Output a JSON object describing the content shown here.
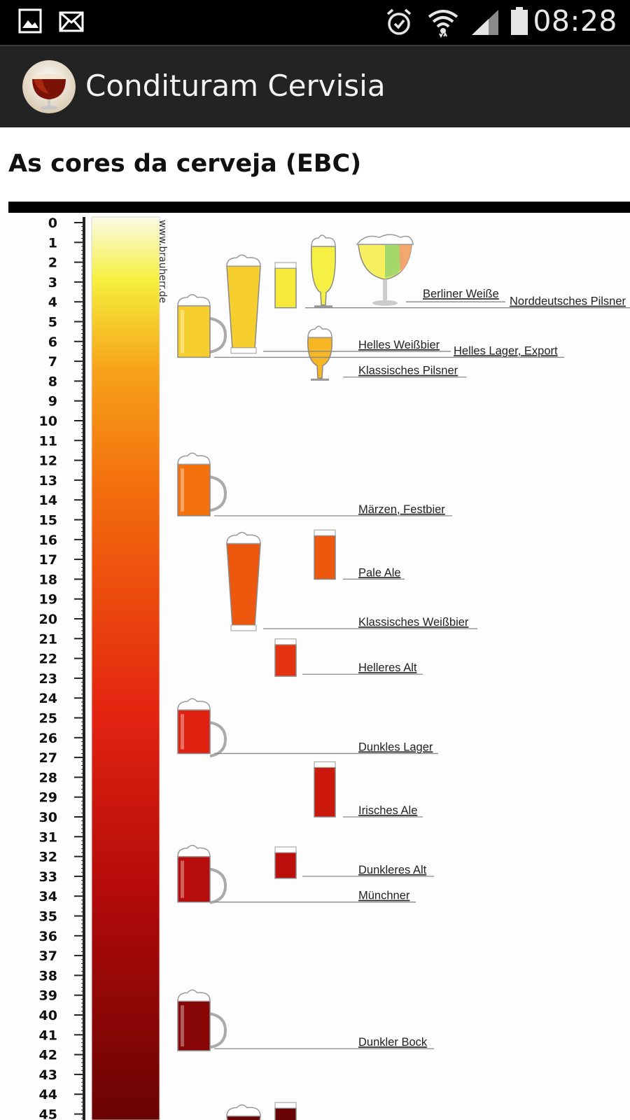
{
  "status_bar": {
    "time": "08:28",
    "left_icons": [
      "gallery-icon",
      "mail-icon"
    ],
    "right_icons": [
      "alarm-icon",
      "wifi-icon",
      "signal-icon",
      "battery-icon"
    ]
  },
  "app_bar": {
    "title": "Condituram Cervisia",
    "logo_icon": "beer-glass-logo-icon"
  },
  "page": {
    "heading": "As cores da cerveja (EBC)",
    "watermark": "www.brauherr.de"
  },
  "scale": {
    "min": 0,
    "max": 45,
    "labels": [
      "0",
      "1",
      "2",
      "3",
      "4",
      "5",
      "6",
      "7",
      "8",
      "9",
      "10",
      "11",
      "12",
      "13",
      "14",
      "15",
      "16",
      "17",
      "18",
      "19",
      "20",
      "21",
      "22",
      "23",
      "24",
      "25",
      "26",
      "27",
      "28",
      "29",
      "30",
      "31",
      "32",
      "33",
      "34",
      "35",
      "36",
      "37",
      "38",
      "39",
      "40",
      "41",
      "42",
      "43",
      "44",
      "45"
    ]
  },
  "colors": {
    "gradient_stops": [
      "#fbfbe6",
      "#f6ef3c",
      "#f7a21a",
      "#f36e0d",
      "#e32410",
      "#b20a0a",
      "#6a0303"
    ],
    "status_bar_bg": "#000000",
    "app_bar_bg": "#232323"
  },
  "beer_styles": [
    {
      "name": "Berliner Weiße",
      "ebc": 4
    },
    {
      "name": "Norddeutsches Pilsner",
      "ebc": 4.3
    },
    {
      "name": "Helles Weißbier",
      "ebc": 6.5
    },
    {
      "name": "Helles Lager, Export",
      "ebc": 6.8
    },
    {
      "name": "Klassisches Pilsner",
      "ebc": 7.8
    },
    {
      "name": "Märzen, Festbier",
      "ebc": 14.8
    },
    {
      "name": "Pale Ale",
      "ebc": 18
    },
    {
      "name": "Klassisches Weißbier",
      "ebc": 20.5
    },
    {
      "name": "Helleres Alt",
      "ebc": 22.8
    },
    {
      "name": "Dunkles Lager",
      "ebc": 26.8
    },
    {
      "name": "Irisches Ale",
      "ebc": 30
    },
    {
      "name": "Dunkleres Alt",
      "ebc": 33
    },
    {
      "name": "Münchner",
      "ebc": 34.3
    },
    {
      "name": "Dunkler Bock",
      "ebc": 41.7
    }
  ]
}
